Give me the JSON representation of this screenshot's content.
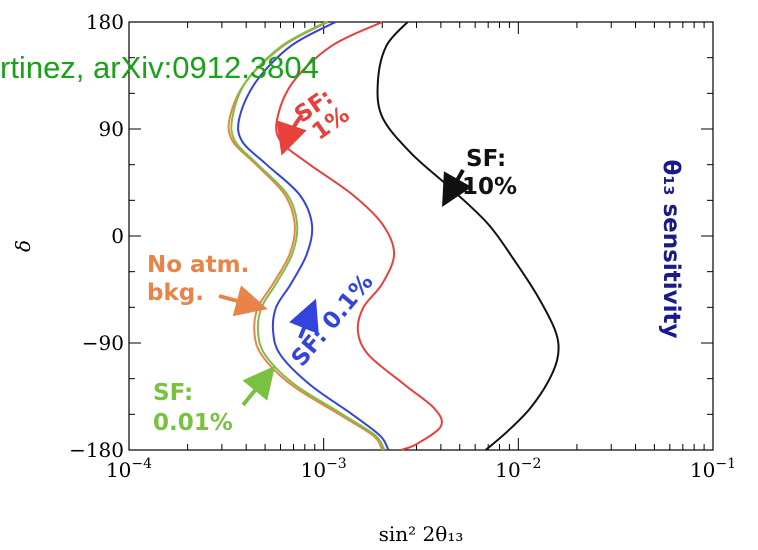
{
  "banner": {
    "text": "rtinez, arXiv:0912.3804",
    "color": "#1aa11a"
  },
  "chart_data": {
    "type": "line",
    "title": "",
    "xlabel": "sin² 2θ₁₃",
    "ylabel": "δ",
    "xscale": "log",
    "xlim": [
      0.0001,
      0.1
    ],
    "ylim": [
      -180,
      180
    ],
    "x_ticks": [
      {
        "value": 0.0001,
        "base": "10",
        "exp": "−4"
      },
      {
        "value": 0.001,
        "base": "10",
        "exp": "−3"
      },
      {
        "value": 0.01,
        "base": "10",
        "exp": "−2"
      },
      {
        "value": 0.1,
        "base": "10",
        "exp": "−1"
      }
    ],
    "y_ticks": [
      {
        "value": 180,
        "label": "180"
      },
      {
        "value": 90,
        "label": "90"
      },
      {
        "value": 0,
        "label": "0"
      },
      {
        "value": -90,
        "label": "−90"
      },
      {
        "value": -180,
        "label": "−180"
      }
    ],
    "grid": false,
    "series": [
      {
        "name": "No atm. bkg.",
        "color": "#e8834a",
        "points": [
          [
            0.00105,
            180
          ],
          [
            0.00062,
            160
          ],
          [
            0.0004,
            130
          ],
          [
            0.00033,
            100
          ],
          [
            0.00034,
            80
          ],
          [
            0.00045,
            60
          ],
          [
            0.00063,
            35
          ],
          [
            0.00071,
            10
          ],
          [
            0.00067,
            -15
          ],
          [
            0.00055,
            -40
          ],
          [
            0.00046,
            -60
          ],
          [
            0.00044,
            -80
          ],
          [
            0.00048,
            -100
          ],
          [
            0.00068,
            -125
          ],
          [
            0.0012,
            -150
          ],
          [
            0.0018,
            -168
          ],
          [
            0.002,
            -180
          ]
        ]
      },
      {
        "name": "SF: 0.01%",
        "color": "#7ac142",
        "points": [
          [
            0.00103,
            180
          ],
          [
            0.00061,
            160
          ],
          [
            0.0004,
            130
          ],
          [
            0.00034,
            100
          ],
          [
            0.00035,
            80
          ],
          [
            0.00046,
            60
          ],
          [
            0.00065,
            35
          ],
          [
            0.00073,
            10
          ],
          [
            0.00069,
            -15
          ],
          [
            0.00057,
            -40
          ],
          [
            0.00048,
            -60
          ],
          [
            0.00046,
            -80
          ],
          [
            0.0005,
            -100
          ],
          [
            0.00071,
            -125
          ],
          [
            0.00125,
            -150
          ],
          [
            0.00185,
            -168
          ],
          [
            0.00205,
            -180
          ]
        ]
      },
      {
        "name": "SF: 0.1%",
        "color": "#3344dd",
        "points": [
          [
            0.00115,
            180
          ],
          [
            0.00068,
            160
          ],
          [
            0.00045,
            130
          ],
          [
            0.00037,
            100
          ],
          [
            0.00038,
            80
          ],
          [
            0.00051,
            60
          ],
          [
            0.00075,
            35
          ],
          [
            0.00087,
            10
          ],
          [
            0.00082,
            -15
          ],
          [
            0.00068,
            -40
          ],
          [
            0.00057,
            -60
          ],
          [
            0.00055,
            -80
          ],
          [
            0.0006,
            -100
          ],
          [
            0.00085,
            -125
          ],
          [
            0.0014,
            -150
          ],
          [
            0.00195,
            -168
          ],
          [
            0.00215,
            -180
          ]
        ]
      },
      {
        "name": "SF: 1%",
        "color": "#e8403a",
        "points": [
          [
            0.002,
            180
          ],
          [
            0.0011,
            160
          ],
          [
            0.0007,
            130
          ],
          [
            0.00058,
            100
          ],
          [
            0.0006,
            80
          ],
          [
            0.00085,
            60
          ],
          [
            0.0014,
            35
          ],
          [
            0.002,
            10
          ],
          [
            0.0023,
            -15
          ],
          [
            0.002,
            -40
          ],
          [
            0.0016,
            -60
          ],
          [
            0.0015,
            -80
          ],
          [
            0.0017,
            -100
          ],
          [
            0.0026,
            -125
          ],
          [
            0.0037,
            -145
          ],
          [
            0.004,
            -160
          ],
          [
            0.003,
            -175
          ],
          [
            0.0025,
            -180
          ]
        ]
      },
      {
        "name": "SF: 10%",
        "color": "#111111",
        "points": [
          [
            0.0027,
            180
          ],
          [
            0.0021,
            160
          ],
          [
            0.0019,
            130
          ],
          [
            0.002,
            100
          ],
          [
            0.0028,
            70
          ],
          [
            0.0045,
            40
          ],
          [
            0.007,
            10
          ],
          [
            0.0095,
            -20
          ],
          [
            0.0125,
            -50
          ],
          [
            0.0155,
            -80
          ],
          [
            0.016,
            -100
          ],
          [
            0.0145,
            -120
          ],
          [
            0.0115,
            -145
          ],
          [
            0.0087,
            -165
          ],
          [
            0.0068,
            -180
          ]
        ]
      }
    ],
    "annotations": [
      {
        "name": "ann-sf-1",
        "lines": [
          "SF:",
          "1%"
        ],
        "color": "#e8403a",
        "rotate": -35
      },
      {
        "name": "ann-sf-10",
        "lines": [
          "SF:",
          "10%"
        ],
        "color": "#111111",
        "rotate": 0
      },
      {
        "name": "ann-no-atm",
        "lines": [
          "No atm.",
          "bkg."
        ],
        "color": "#e8834a",
        "rotate": 0
      },
      {
        "name": "ann-sf-01",
        "lines": [
          "SF: 0.1%"
        ],
        "color": "#3344dd",
        "rotate": -50
      },
      {
        "name": "ann-sf-001",
        "lines": [
          "SF:",
          "0.01%"
        ],
        "color": "#7ac142",
        "rotate": 0
      },
      {
        "name": "ann-theta",
        "lines": [
          "θ₁₃ sensitivity"
        ],
        "color": "#1a1a8c",
        "rotate": 90
      }
    ]
  }
}
